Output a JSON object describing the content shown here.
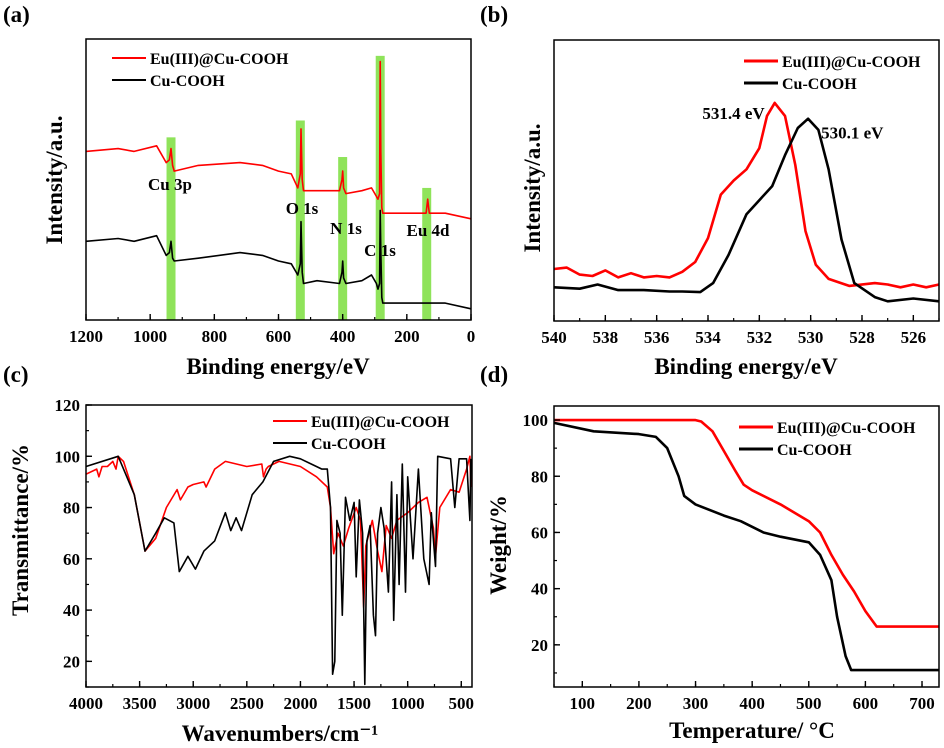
{
  "colors": {
    "eu": "#ff0000",
    "cu": "#000000",
    "band": "#8fe35a"
  },
  "chart_data": [
    {
      "panel": "(a)",
      "type": "line",
      "xlabel": "Binding energy/eV",
      "ylabel": "Intensity/a.u.",
      "xlim": [
        1200,
        0
      ],
      "ylim": [
        0,
        100
      ],
      "x_reversed": true,
      "xticks": [
        1200,
        1000,
        800,
        600,
        400,
        200,
        0
      ],
      "xminor": 100,
      "yticks": [],
      "legend": "top-left",
      "series": [
        {
          "name": "Eu(III)@Cu-COOH",
          "color": "#ff0000",
          "x": [
            1200,
            1100,
            1050,
            980,
            950,
            940,
            935,
            930,
            925,
            850,
            720,
            650,
            600,
            560,
            540,
            532,
            530,
            526,
            522,
            480,
            410,
            402,
            400,
            397,
            390,
            340,
            310,
            295,
            290,
            285,
            283,
            281,
            278,
            275,
            200,
            140,
            135,
            130,
            80,
            0
          ],
          "y": [
            60,
            61,
            60,
            62,
            56,
            57,
            61,
            55,
            53,
            55,
            56,
            55,
            53,
            52,
            47,
            52,
            68,
            50,
            46,
            46,
            46,
            50,
            53,
            47,
            45,
            46,
            47,
            44,
            43,
            45,
            92,
            60,
            40,
            38,
            38,
            38,
            43,
            38,
            38,
            36
          ]
        },
        {
          "name": "Cu-COOH",
          "color": "#000000",
          "x": [
            1200,
            1100,
            1050,
            980,
            950,
            940,
            935,
            930,
            925,
            850,
            720,
            650,
            600,
            560,
            540,
            532,
            530,
            526,
            522,
            480,
            410,
            402,
            400,
            397,
            390,
            340,
            310,
            295,
            290,
            285,
            283,
            281,
            278,
            275,
            200,
            140,
            80,
            0
          ],
          "y": [
            28,
            29,
            28,
            30,
            23,
            24,
            28,
            22,
            21,
            22,
            24,
            23,
            21,
            20,
            16,
            20,
            35,
            17,
            13,
            14,
            13,
            17,
            21,
            15,
            13,
            14,
            16,
            13,
            11,
            13,
            39,
            25,
            8,
            6,
            6,
            6,
            6,
            4
          ]
        }
      ],
      "bands": [
        {
          "label": "Cu 3p",
          "x": 935,
          "top": 65
        },
        {
          "label": "O 1s",
          "x": 532,
          "top": 71
        },
        {
          "label": "N 1s",
          "x": 400,
          "top": 58
        },
        {
          "label": "C 1s",
          "x": 283,
          "top": 94
        },
        {
          "label": "Eu 4d",
          "x": 138,
          "top": 47
        }
      ]
    },
    {
      "panel": "(b)",
      "type": "line",
      "xlabel": "Binding energy/eV",
      "ylabel": "Intensity/a.u.",
      "xlim": [
        540,
        525
      ],
      "ylim": [
        0,
        100
      ],
      "x_reversed": true,
      "xticks": [
        540,
        538,
        536,
        534,
        532,
        530,
        528,
        526
      ],
      "xminor": 1,
      "yticks": [],
      "legend": "top-right",
      "series": [
        {
          "name": "Eu(III)@Cu-COOH",
          "color": "#ff0000",
          "x": [
            540,
            539.5,
            539,
            538.5,
            538,
            537.5,
            537,
            536.5,
            536,
            535.5,
            535,
            534.5,
            534,
            533.5,
            533,
            532.5,
            532,
            531.7,
            531.4,
            531,
            530.6,
            530.2,
            529.8,
            529.3,
            528.5,
            527.5,
            527,
            526.5,
            526,
            525.5,
            525
          ],
          "y": [
            18.5,
            19,
            16.5,
            16,
            18,
            15.5,
            17,
            15.5,
            16,
            15.5,
            17.5,
            21,
            29.5,
            45,
            50,
            54,
            61.5,
            73,
            77.6,
            73,
            55.5,
            32,
            20,
            15,
            12.5,
            13.5,
            13,
            12,
            13,
            12,
            13
          ]
        },
        {
          "name": "Cu-COOH",
          "color": "#000000",
          "x": [
            540,
            539,
            538.3,
            537.5,
            536.5,
            535.5,
            535,
            534.3,
            533.8,
            533.2,
            532.5,
            532,
            531.5,
            531,
            530.5,
            530.1,
            529.7,
            529.3,
            528.8,
            528.3,
            527.5,
            527,
            526,
            525
          ],
          "y": [
            12,
            11.5,
            13,
            11,
            11,
            10.5,
            10.5,
            10.3,
            13.5,
            23.5,
            38,
            43,
            48,
            59,
            68.7,
            72,
            68,
            54,
            29,
            13.5,
            8.5,
            7,
            8,
            7
          ]
        }
      ],
      "annotations": [
        {
          "text": "531.4 eV",
          "x": 531.4,
          "y": 77.6
        },
        {
          "text": "530.1 eV",
          "x": 530.1,
          "y": 72
        }
      ]
    },
    {
      "panel": "(c)",
      "type": "line",
      "xlabel": "Wavenumbers/cm⁻¹",
      "ylabel": "Transmittance/%",
      "xlim": [
        4000,
        400
      ],
      "ylim": [
        10,
        120
      ],
      "x_reversed": true,
      "xticks": [
        4000,
        3500,
        3000,
        2500,
        2000,
        1500,
        1000,
        500
      ],
      "xminor": 250,
      "yticks": [
        20,
        40,
        60,
        80,
        100,
        120
      ],
      "yminor": 10,
      "legend": "top-right",
      "series": [
        {
          "name": "Eu(III)@Cu-COOH",
          "color": "#ff0000",
          "x": [
            4000,
            3900,
            3880,
            3850,
            3800,
            3750,
            3720,
            3700,
            3650,
            3550,
            3450,
            3350,
            3250,
            3150,
            3120,
            3050,
            3000,
            2900,
            2880,
            2800,
            2700,
            2500,
            2360,
            2345,
            2320,
            2300,
            2200,
            2000,
            1850,
            1750,
            1720,
            1690,
            1650,
            1600,
            1550,
            1480,
            1440,
            1410,
            1390,
            1330,
            1280,
            1240,
            1200,
            1150,
            1100,
            1000,
            900,
            820,
            760,
            740,
            700,
            600,
            520,
            450,
            420,
            410
          ],
          "y": [
            93,
            95,
            92,
            96,
            96,
            98,
            95,
            100,
            98,
            85,
            63,
            68,
            80,
            87,
            83,
            88,
            89,
            90,
            88,
            95,
            98,
            96,
            97,
            92,
            95,
            96,
            98,
            96,
            92,
            88,
            80,
            62,
            70,
            65,
            72,
            80,
            75,
            41,
            65,
            75,
            63,
            55,
            73,
            68,
            75,
            78,
            82,
            84,
            72,
            61,
            80,
            87,
            86,
            95,
            100,
            88
          ]
        },
        {
          "name": "Cu-COOH",
          "color": "#000000",
          "x": [
            4000,
            3700,
            3550,
            3450,
            3350,
            3270,
            3180,
            3130,
            3050,
            2980,
            2900,
            2800,
            2700,
            2650,
            2600,
            2550,
            2450,
            2350,
            2250,
            2100,
            2000,
            1900,
            1800,
            1750,
            1720,
            1700,
            1680,
            1660,
            1630,
            1610,
            1580,
            1540,
            1500,
            1480,
            1450,
            1420,
            1400,
            1380,
            1350,
            1320,
            1300,
            1280,
            1250,
            1220,
            1180,
            1150,
            1130,
            1100,
            1080,
            1050,
            1020,
            1000,
            950,
            900,
            850,
            800,
            780,
            740,
            720,
            600,
            560,
            520,
            450,
            420,
            410
          ],
          "y": [
            96,
            100,
            85,
            63,
            70,
            76,
            74,
            55,
            61,
            56,
            63,
            67,
            78,
            71,
            76,
            71,
            85,
            90,
            98,
            100,
            99,
            97,
            95,
            95,
            80,
            15,
            20,
            75,
            70,
            38,
            84,
            75,
            82,
            53,
            83,
            70,
            11,
            67,
            73,
            38,
            30,
            70,
            80,
            72,
            47,
            90,
            36,
            85,
            50,
            97,
            47,
            92,
            60,
            95,
            60,
            50,
            78,
            57,
            100,
            99,
            80,
            99,
            99,
            75,
            99
          ]
        }
      ]
    },
    {
      "panel": "(d)",
      "type": "line",
      "xlabel": "Temperature/ °C",
      "ylabel": "Weight/%",
      "xlim": [
        50,
        730
      ],
      "ylim": [
        5,
        105
      ],
      "x_reversed": false,
      "xticks": [
        100,
        200,
        300,
        400,
        500,
        600,
        700
      ],
      "xminor": 50,
      "yticks": [
        20,
        40,
        60,
        80,
        100
      ],
      "yminor": 10,
      "legend": "top-right",
      "series": [
        {
          "name": "Eu(III)@Cu-COOH",
          "color": "#ff0000",
          "x": [
            50,
            300,
            310,
            330,
            350,
            370,
            385,
            400,
            450,
            500,
            520,
            540,
            560,
            580,
            600,
            620,
            730
          ],
          "y": [
            100,
            100,
            99.5,
            96,
            89,
            82,
            77,
            75,
            70,
            64,
            60,
            52,
            45,
            39,
            32,
            26.5,
            26.5
          ]
        },
        {
          "name": "Cu-COOH",
          "color": "#000000",
          "x": [
            50,
            120,
            200,
            230,
            250,
            270,
            280,
            300,
            350,
            380,
            420,
            450,
            500,
            520,
            540,
            550,
            565,
            575,
            730
          ],
          "y": [
            99,
            96,
            95,
            94,
            90,
            80,
            73,
            70,
            66,
            64,
            60,
            58.5,
            56.5,
            52,
            43,
            30,
            16,
            11,
            11
          ]
        }
      ]
    }
  ]
}
